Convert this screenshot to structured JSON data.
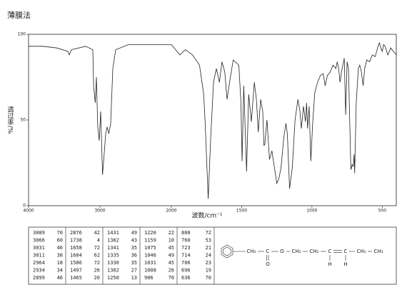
{
  "chart_data": {
    "type": "line",
    "title": "薄膜法",
    "x_label": "波数/cm⁻¹",
    "y_label": "透过率/%",
    "xlim": [
      4000,
      400
    ],
    "x_scale_change_at": 2000,
    "ylim": [
      0,
      100
    ],
    "xticks": [
      4000,
      3000,
      2000,
      1500,
      1000,
      500
    ],
    "yticks": [
      0,
      50,
      100
    ],
    "color": "#222222",
    "x": [
      4000,
      3800,
      3600,
      3450,
      3430,
      3400,
      3200,
      3100,
      3089,
      3066,
      3050,
      3031,
      3011,
      2990,
      2964,
      2934,
      2920,
      2899,
      2876,
      2850,
      2820,
      2780,
      2600,
      2400,
      2200,
      2000,
      1960,
      1940,
      1900,
      1850,
      1800,
      1770,
      1760,
      1738,
      1720,
      1700,
      1680,
      1658,
      1640,
      1620,
      1604,
      1586,
      1560,
      1520,
      1505,
      1497,
      1485,
      1465,
      1450,
      1431,
      1410,
      1395,
      1382,
      1365,
      1350,
      1341,
      1335,
      1320,
      1302,
      1285,
      1270,
      1250,
      1235,
      1220,
      1200,
      1185,
      1175,
      1159,
      1140,
      1120,
      1100,
      1085,
      1075,
      1060,
      1046,
      1038,
      1031,
      1020,
      1008,
      995,
      980,
      960,
      940,
      920,
      906,
      890,
      870,
      850,
      830,
      820,
      810,
      800,
      790,
      770,
      760,
      750,
      740,
      723,
      714,
      706,
      700,
      696,
      685,
      670,
      660,
      650,
      636,
      625,
      610,
      590,
      570,
      550,
      530,
      520,
      510,
      500,
      490,
      480,
      460,
      440,
      420,
      400
    ],
    "values": [
      93,
      93,
      92,
      90,
      88,
      91,
      93,
      91,
      70,
      60,
      75,
      46,
      38,
      55,
      18,
      34,
      42,
      46,
      42,
      48,
      80,
      91,
      94,
      94,
      94,
      94,
      90,
      88,
      91,
      88,
      82,
      65,
      49,
      4,
      40,
      72,
      80,
      72,
      84,
      78,
      62,
      72,
      85,
      82,
      60,
      26,
      70,
      20,
      65,
      49,
      72,
      62,
      43,
      62,
      55,
      35,
      36,
      50,
      27,
      32,
      24,
      13,
      16,
      22,
      40,
      48,
      42,
      10,
      22,
      50,
      62,
      55,
      45,
      58,
      49,
      60,
      45,
      58,
      26,
      48,
      66,
      72,
      76,
      77,
      70,
      76,
      78,
      82,
      80,
      84,
      80,
      72,
      78,
      86,
      53,
      84,
      80,
      21,
      24,
      23,
      30,
      19,
      60,
      80,
      82,
      79,
      70,
      80,
      85,
      84,
      88,
      87,
      93,
      95,
      92,
      90,
      94,
      93,
      88,
      92,
      90,
      88
    ]
  },
  "peak_table": {
    "columns": [
      [
        [
          "3089",
          "70"
        ],
        [
          "3066",
          "60"
        ],
        [
          "3031",
          "46"
        ],
        [
          "3011",
          "38"
        ],
        [
          "2964",
          "18"
        ],
        [
          "2934",
          "34"
        ],
        [
          "2899",
          "46"
        ]
      ],
      [
        [
          "2876",
          "42"
        ],
        [
          "1738",
          "4"
        ],
        [
          "1658",
          "72"
        ],
        [
          "1604",
          "62"
        ],
        [
          "1586",
          "72"
        ],
        [
          "1497",
          "26"
        ],
        [
          "1465",
          "20"
        ]
      ],
      [
        [
          "1431",
          "49"
        ],
        [
          "1382",
          "43"
        ],
        [
          "1341",
          "35"
        ],
        [
          "1335",
          "36"
        ],
        [
          "1330",
          "35"
        ],
        [
          "1302",
          "27"
        ],
        [
          "1250",
          "13"
        ]
      ],
      [
        [
          "1220",
          "22"
        ],
        [
          "1159",
          "10"
        ],
        [
          "1075",
          "45"
        ],
        [
          "1046",
          "49"
        ],
        [
          "1031",
          "45"
        ],
        [
          "1008",
          "26"
        ],
        [
          "906",
          "70"
        ]
      ],
      [
        [
          "800",
          "72"
        ],
        [
          "760",
          "53"
        ],
        [
          "723",
          "21"
        ],
        [
          "714",
          "24"
        ],
        [
          "706",
          "23"
        ],
        [
          "696",
          "19"
        ],
        [
          "636",
          "70"
        ]
      ]
    ]
  },
  "structure": {
    "labels": [
      "CH₂",
      "C",
      "O",
      "O",
      "CH₂",
      "CH₂",
      "C",
      "C",
      "H",
      "H",
      "CH₂",
      "CH₃"
    ]
  }
}
